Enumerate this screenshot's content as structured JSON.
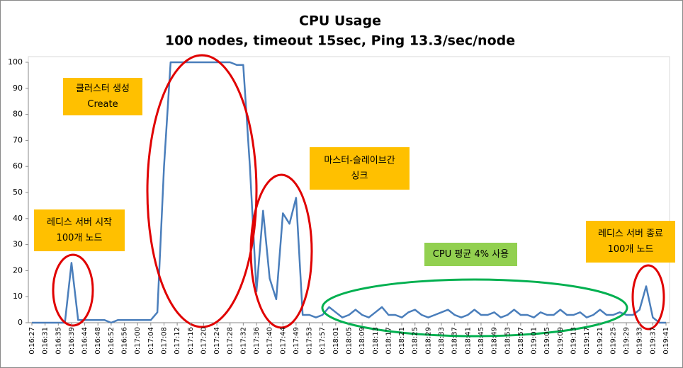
{
  "chart_data": {
    "type": "line",
    "title": "CPU Usage",
    "subtitle": "100 nodes, timeout 15sec, Ping 13.3/sec/node",
    "categories": [
      "0:16:27",
      null,
      "0:16:31",
      null,
      "0:16:35",
      null,
      "0:16:39",
      null,
      "0:16:44",
      null,
      "0:16:48",
      null,
      "0:16:52",
      null,
      "0:16:56",
      null,
      "0:17:00",
      null,
      "0:17:04",
      null,
      "0:17:08",
      null,
      "0:17:12",
      null,
      "0:17:16",
      null,
      "0:17:20",
      null,
      "0:17:24",
      null,
      "0:17:28",
      null,
      "0:17:32",
      null,
      "0:17:36",
      null,
      "0:17:40",
      null,
      "0:17:44",
      null,
      "0:17:49",
      null,
      "0:17:53",
      null,
      "0:17:57",
      null,
      "0:18:01",
      null,
      "0:18:05",
      null,
      "0:18:09",
      null,
      "0:18:13",
      null,
      "0:18:17",
      null,
      "0:18:21",
      null,
      "0:18:25",
      null,
      "0:18:29",
      null,
      "0:18:33",
      null,
      "0:18:37",
      null,
      "0:18:41",
      null,
      "0:18:45",
      null,
      "0:18:49",
      null,
      "0:18:53",
      null,
      "0:18:57",
      null,
      "0:19:01",
      null,
      "0:19:05",
      null,
      "0:19:09",
      null,
      "0:19:13",
      null,
      "0:19:17",
      null,
      "0:19:21",
      null,
      "0:19:25",
      null,
      "0:19:29",
      null,
      "0:19:33",
      null,
      "0:19:37",
      null,
      "0:19:41"
    ],
    "values": [
      0,
      0,
      0,
      0,
      0,
      0,
      23,
      1,
      1,
      1,
      1,
      1,
      0,
      1,
      1,
      1,
      1,
      1,
      1,
      4,
      60,
      100,
      100,
      100,
      100,
      100,
      100,
      100,
      100,
      100,
      100,
      99,
      99,
      60,
      12,
      43,
      17,
      9,
      42,
      38,
      48,
      3,
      3,
      2,
      3,
      6,
      4,
      2,
      3,
      5,
      3,
      2,
      4,
      6,
      3,
      3,
      2,
      4,
      5,
      3,
      2,
      3,
      4,
      5,
      3,
      2,
      3,
      5,
      3,
      3,
      4,
      2,
      3,
      5,
      3,
      3,
      2,
      4,
      3,
      3,
      5,
      3,
      3,
      4,
      2,
      3,
      5,
      3,
      3,
      4,
      3,
      3,
      5,
      14,
      2,
      0,
      0
    ],
    "color": "#4a7ebb",
    "ylim": [
      0,
      100
    ],
    "yticks": [
      0,
      10,
      20,
      30,
      40,
      50,
      60,
      70,
      80,
      90,
      100
    ],
    "grid": false,
    "annotations": [
      {
        "lines": [
          "클러스터 생성",
          "Create"
        ],
        "color": "#ffc000"
      },
      {
        "lines": [
          "마스터-슬레이브간",
          "싱크"
        ],
        "color": "#ffc000"
      },
      {
        "lines": [
          "레디스 서버 시작",
          "100개 노드"
        ],
        "color": "#ffc000"
      },
      {
        "lines": [
          "CPU 평균 4% 사용"
        ],
        "color": "#92d050"
      },
      {
        "lines": [
          "레디스 서버 종료",
          "100개 노드"
        ],
        "color": "#ffc000"
      }
    ]
  }
}
